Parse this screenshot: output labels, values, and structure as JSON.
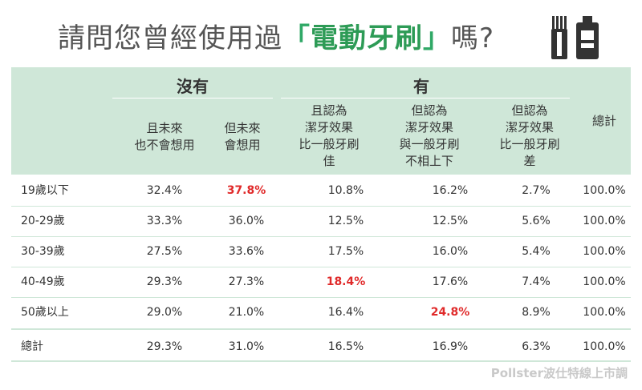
{
  "title": {
    "before": "請問您曾經使用過",
    "open_bracket": "「",
    "highlight": "電動牙刷",
    "close_bracket": "」",
    "after": "嗎?"
  },
  "icons": [
    "toothbrush-icon",
    "toothpaste-icon"
  ],
  "colors": {
    "header_bg": "#cfe7d8",
    "title_accent": "#2d9b56",
    "highlight_value": "#e02a2a"
  },
  "chart_data": {
    "type": "table",
    "groups": [
      {
        "label": "沒有",
        "span": 2
      },
      {
        "label": "有",
        "span": 3
      }
    ],
    "columns": [
      "且未來\n也不會想用",
      "但未來\n會想用",
      "且認為\n潔牙效果\n比一般牙刷\n佳",
      "但認為\n潔牙效果\n與一般牙刷\n不相上下",
      "但認為\n潔牙效果\n比一般牙刷\n差",
      "總計"
    ],
    "rows": [
      {
        "label": "19歲以下",
        "values": [
          "32.4%",
          "37.8%",
          "10.8%",
          "16.2%",
          "2.7%",
          "100.0%"
        ],
        "highlight": [
          1
        ]
      },
      {
        "label": "20-29歲",
        "values": [
          "33.3%",
          "36.0%",
          "12.5%",
          "12.5%",
          "5.6%",
          "100.0%"
        ],
        "highlight": []
      },
      {
        "label": "30-39歲",
        "values": [
          "27.5%",
          "33.6%",
          "17.5%",
          "16.0%",
          "5.4%",
          "100.0%"
        ],
        "highlight": []
      },
      {
        "label": "40-49歲",
        "values": [
          "29.3%",
          "27.3%",
          "18.4%",
          "17.6%",
          "7.4%",
          "100.0%"
        ],
        "highlight": [
          2
        ]
      },
      {
        "label": "50歲以上",
        "values": [
          "29.0%",
          "21.0%",
          "16.4%",
          "24.8%",
          "8.9%",
          "100.0%"
        ],
        "highlight": [
          3
        ]
      },
      {
        "label": "總計",
        "values": [
          "29.3%",
          "31.0%",
          "16.5%",
          "16.9%",
          "6.3%",
          "100.0%"
        ],
        "highlight": []
      }
    ]
  },
  "footer": "Pollster波仕特線上市調"
}
